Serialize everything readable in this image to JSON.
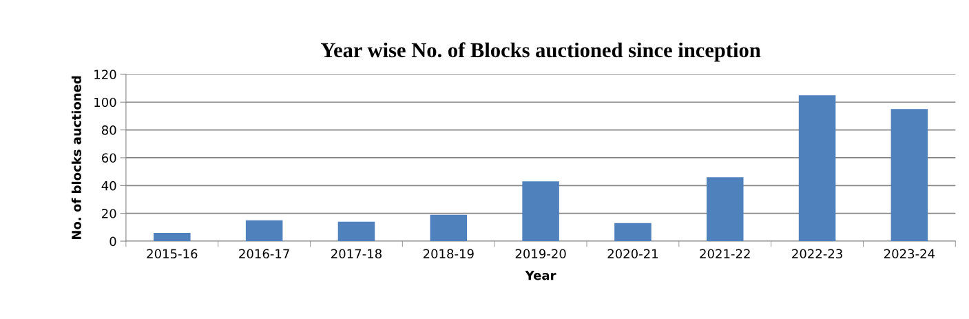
{
  "chart_data": {
    "type": "bar",
    "title": "Year wise No. of Blocks auctioned since inception",
    "xlabel": "Year",
    "ylabel": "No. of blocks auctioned",
    "categories": [
      "2015-16",
      "2016-17",
      "2017-18",
      "2018-19",
      "2019-20",
      "2020-21",
      "2021-22",
      "2022-23",
      "2023-24"
    ],
    "values": [
      6,
      15,
      14,
      19,
      43,
      13,
      46,
      105,
      95
    ],
    "color": "#4f81bd",
    "ylim": [
      0,
      120
    ],
    "yticks": [
      0,
      20,
      40,
      60,
      80,
      100,
      120
    ],
    "grid": "y",
    "legend": false
  }
}
